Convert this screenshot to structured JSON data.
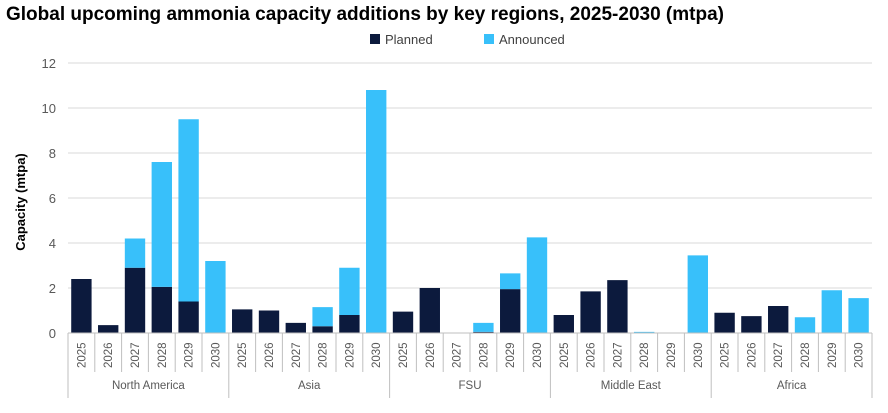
{
  "chart_data": {
    "type": "bar",
    "stacked": true,
    "title": "Global upcoming ammonia capacity additions by key regions, 2025-2030 (mtpa)",
    "xlabel": "",
    "ylabel": "Capacity (mtpa)",
    "ylim": [
      0,
      12
    ],
    "yticks": [
      0,
      2,
      4,
      6,
      8,
      10,
      12
    ],
    "grid": true,
    "legend_placement": "top-center",
    "groups": [
      "North America",
      "Asia",
      "FSU",
      "Middle East",
      "Africa"
    ],
    "years": [
      "2025",
      "2026",
      "2027",
      "2028",
      "2029",
      "2030"
    ],
    "series": [
      {
        "name": "Planned",
        "color": "#0c1a3d",
        "values": [
          2.4,
          0.35,
          2.9,
          2.05,
          1.4,
          0,
          1.05,
          1.0,
          0.45,
          0.3,
          0.8,
          0,
          0.95,
          2.0,
          0,
          0.05,
          1.95,
          0,
          0.8,
          1.85,
          2.35,
          0,
          0,
          0,
          0.9,
          0.75,
          1.2,
          0,
          0,
          0
        ]
      },
      {
        "name": "Announced",
        "color": "#38c0fa",
        "values": [
          0,
          0,
          1.3,
          5.55,
          8.1,
          3.2,
          0,
          0,
          0,
          0.85,
          2.1,
          10.8,
          0,
          0,
          0,
          0.4,
          0.7,
          4.25,
          0,
          0,
          0,
          0.05,
          0,
          3.45,
          0,
          0,
          0,
          0.7,
          1.9,
          1.55
        ]
      }
    ]
  }
}
